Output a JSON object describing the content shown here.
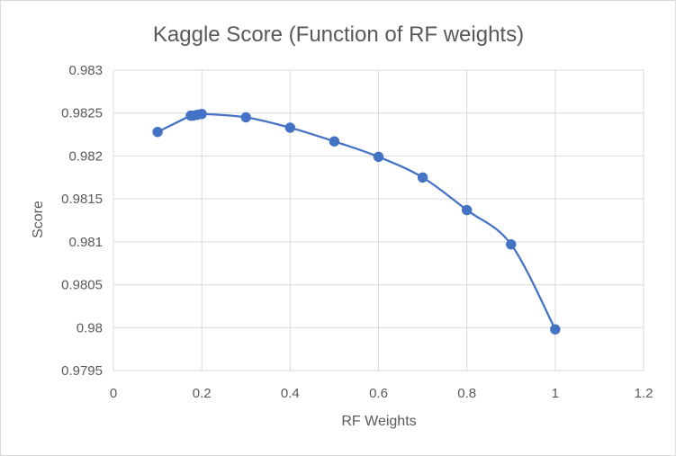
{
  "chart_data": {
    "type": "scatter",
    "title": "Kaggle Score (Function of RF weights)",
    "xlabel": "RF Weights",
    "ylabel": "Score",
    "xlim": [
      0,
      1.2
    ],
    "ylim": [
      0.9795,
      0.983
    ],
    "xticks": [
      "0",
      "0.2",
      "0.4",
      "0.6",
      "0.8",
      "1",
      "1.2"
    ],
    "yticks": [
      "0.9795",
      "0.98",
      "0.9805",
      "0.981",
      "0.9815",
      "0.982",
      "0.9825",
      "0.983"
    ],
    "grid": "vertical and horizontal",
    "legend": "none",
    "smooth": true,
    "series": [
      {
        "color": "#4472c4",
        "points": [
          {
            "x": 0.1,
            "y": 0.98228
          },
          {
            "x": 0.175,
            "y": 0.98247
          },
          {
            "x": 0.18,
            "y": 0.98247
          },
          {
            "x": 0.19,
            "y": 0.98248
          },
          {
            "x": 0.2,
            "y": 0.98249
          },
          {
            "x": 0.3,
            "y": 0.98245
          },
          {
            "x": 0.4,
            "y": 0.98233
          },
          {
            "x": 0.5,
            "y": 0.98217
          },
          {
            "x": 0.6,
            "y": 0.98199
          },
          {
            "x": 0.7,
            "y": 0.98175
          },
          {
            "x": 0.8,
            "y": 0.98137
          },
          {
            "x": 0.9,
            "y": 0.98097
          },
          {
            "x": 1.0,
            "y": 0.97998
          }
        ]
      }
    ]
  }
}
